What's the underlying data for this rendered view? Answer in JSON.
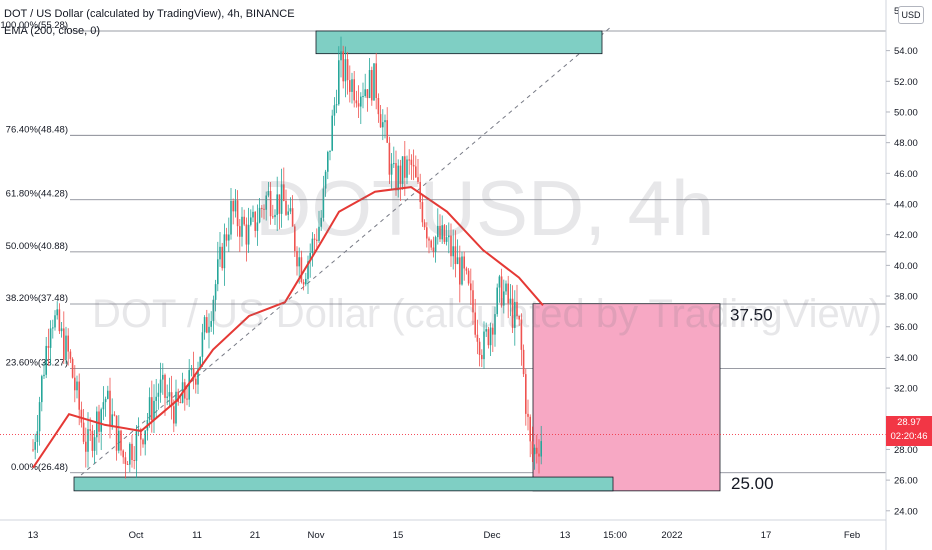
{
  "header": {
    "symbol_line": "DOT / US Dollar (calculated by TradingView), 4h, BINANCE",
    "indicator_line": "EMA (200, close, 0)"
  },
  "watermark": {
    "ticker": "DOTUSD, 4h",
    "name": "DOT / US Dollar (calculated by TradingView)"
  },
  "currency_label": "USD",
  "last_price": {
    "value": "28.97",
    "countdown": "02:20:46"
  },
  "colors": {
    "up": "#26a69a",
    "down": "#ef5350",
    "ema": "#e53935",
    "zone": "#7fcfc4",
    "target": "#f7a8c4",
    "price_line": "#f23645"
  },
  "chart_data": {
    "type": "line",
    "title": "DOT / US Dollar (calculated by TradingView), 4h, BINANCE",
    "y_axis": {
      "range": [
        23.4,
        57.3
      ],
      "ticks": [
        24.0,
        26.0,
        28.0,
        30.0,
        32.0,
        34.0,
        36.0,
        38.0,
        40.0,
        42.0,
        44.0,
        46.0,
        48.0,
        50.0,
        52.0,
        54.0
      ]
    },
    "x_axis": {
      "ticks": [
        "13",
        "Oct",
        "11",
        "21",
        "Nov",
        "15",
        "Dec",
        "13",
        "15:00",
        "2022",
        "17",
        "Feb"
      ]
    },
    "price_series": {
      "x": [
        "Sep 13",
        "Sep 16",
        "Sep 19",
        "Sep 22",
        "Sep 25",
        "Sep 28",
        "Oct 1",
        "Oct 4",
        "Oct 7",
        "Oct 10",
        "Oct 13",
        "Oct 16",
        "Oct 19",
        "Oct 22",
        "Oct 25",
        "Oct 28",
        "Oct 31",
        "Nov 3",
        "Nov 6",
        "Nov 9",
        "Nov 12",
        "Nov 15",
        "Nov 18",
        "Nov 21",
        "Nov 24",
        "Nov 27",
        "Nov 30",
        "Dec 3",
        "Dec 5",
        "Dec 7"
      ],
      "y": [
        28.0,
        37.0,
        34.0,
        28.0,
        31.5,
        27.5,
        29.0,
        32.0,
        30.5,
        33.0,
        38.0,
        43.5,
        42.0,
        44.5,
        44.0,
        39.5,
        43.0,
        53.0,
        51.5,
        52.0,
        45.5,
        46.5,
        42.0,
        41.5,
        39.0,
        34.5,
        38.5,
        36.0,
        27.5,
        29.0
      ]
    },
    "ema_series": {
      "name": "EMA (200, close, 0)",
      "x": [
        "Sep 13",
        "Sep 19",
        "Sep 25",
        "Oct 1",
        "Oct 7",
        "Oct 13",
        "Oct 19",
        "Oct 25",
        "Oct 31",
        "Nov 3",
        "Nov 9",
        "Nov 15",
        "Nov 21",
        "Nov 27",
        "Dec 3",
        "Dec 7"
      ],
      "y": [
        26.8,
        30.3,
        29.6,
        29.2,
        31.2,
        34.5,
        36.7,
        37.6,
        41.5,
        43.5,
        44.8,
        45.1,
        43.5,
        41.0,
        39.2,
        37.4
      ]
    },
    "fib_levels": [
      {
        "label": "100.00%(55.28)",
        "value": 55.28
      },
      {
        "label": "76.40%(48.48)",
        "value": 48.48
      },
      {
        "label": "61.80%(44.28)",
        "value": 44.28
      },
      {
        "label": "50.00%(40.88)",
        "value": 40.88
      },
      {
        "label": "38.20%(37.48)",
        "value": 37.48
      },
      {
        "label": "23.60%(33.27)",
        "value": 33.27
      },
      {
        "label": "0.00%(26.48)",
        "value": 26.48
      }
    ],
    "zones": [
      {
        "name": "resistance",
        "low": 53.8,
        "high": 55.28
      },
      {
        "name": "support",
        "low": 25.3,
        "high": 26.2
      }
    ],
    "target_box": {
      "low": 25.3,
      "high": 37.5
    },
    "annotations": [
      "37.50",
      "25.00"
    ],
    "last_price": 28.97
  }
}
